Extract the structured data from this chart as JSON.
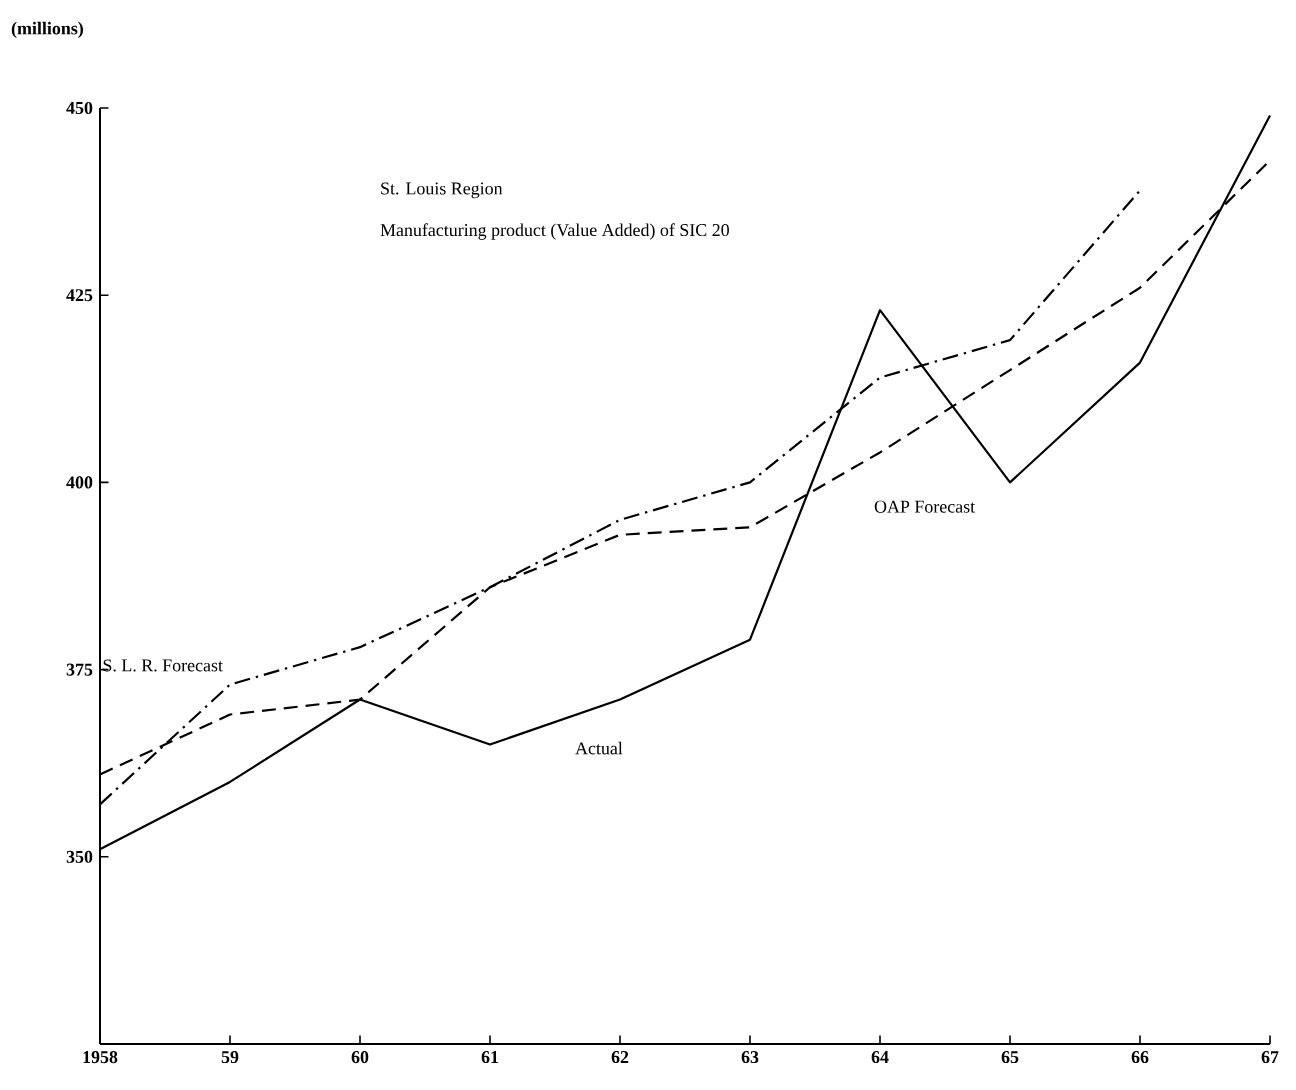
{
  "chart_data": {
    "type": "line",
    "title": "St. Louis Region",
    "subtitle": "Manufacturing product (Value Added) of SIC 20",
    "ylabel": "(millions)",
    "categories": [
      "1958",
      "59",
      "60",
      "61",
      "62",
      "63",
      "64",
      "65",
      "66",
      "67"
    ],
    "series": [
      {
        "name": "Actual",
        "color": "#000000",
        "line_style": "solid",
        "values": [
          351,
          360,
          371,
          365,
          371,
          379,
          423,
          400,
          416,
          449
        ]
      },
      {
        "name": "S. L. R. Forecast",
        "color": "#000000",
        "line_style": "dashdot",
        "values": [
          357,
          373,
          378,
          386,
          395,
          400,
          414,
          419,
          439,
          null
        ]
      },
      {
        "name": "OAP Forecast",
        "color": "#000000",
        "line_style": "dashed",
        "values": [
          361,
          369,
          371,
          386,
          393,
          394,
          404,
          415,
          426,
          443
        ]
      }
    ],
    "ylim": [
      325,
      450
    ],
    "yticks": [
      350,
      375,
      400,
      425,
      450
    ]
  }
}
